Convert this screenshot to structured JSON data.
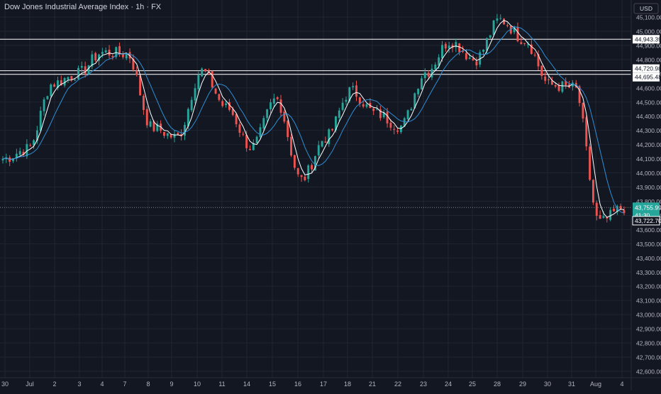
{
  "header": {
    "title": "Dow Jones Industrial Average Index · 1h · FX"
  },
  "currency_badge": "USD",
  "colors": {
    "bg": "#131722",
    "grid": "#1f2430",
    "up": "#26a69a",
    "down": "#ef5350",
    "ma_fast": "#ffffff",
    "ma_slow": "#2e8fd6",
    "level": "#ffffff",
    "price_badge": "#26a69a"
  },
  "chart_data": {
    "type": "candlestick",
    "title": "Dow Jones Industrial Average Index · 1h · FX",
    "ylim": [
      42550,
      45200
    ],
    "y_ticks": [
      "45,100.00",
      "45,000.00",
      "44,900.00",
      "44,800.00",
      "44,700.00",
      "44,600.00",
      "44,500.00",
      "44,400.00",
      "44,300.00",
      "44,200.00",
      "44,100.00",
      "44,000.00",
      "43,900.00",
      "43,800.00",
      "43,700.00",
      "43,600.00",
      "43,500.00",
      "43,400.00",
      "43,300.00",
      "43,200.00",
      "43,100.00",
      "43,000.00",
      "42,900.00",
      "42,800.00",
      "42,700.00",
      "42,600.00"
    ],
    "x_ticks": [
      "30",
      "Jul",
      "2",
      "3",
      "4",
      "7",
      "8",
      "9",
      "10",
      "11",
      "14",
      "15",
      "16",
      "17",
      "18",
      "21",
      "22",
      "23",
      "24",
      "25",
      "28",
      "29",
      "30",
      "31",
      "Aug",
      "4"
    ],
    "levels": [
      {
        "label": "44,943.39",
        "value": 44943.39
      },
      {
        "label": "44,720.98",
        "value": 44720.98
      },
      {
        "label": "44,695.48",
        "value": 44695.48
      }
    ],
    "last_price": {
      "label": "43,755.99",
      "countdown": "41:30"
    },
    "secondary_price": {
      "label": "43,722.70"
    },
    "key_prices": [
      {
        "x": "30",
        "close": 44100
      },
      {
        "x": "Jul",
        "close": 44170
      },
      {
        "x": "2",
        "close": 44630
      },
      {
        "x": "3",
        "close": 44700
      },
      {
        "x": "4",
        "close": 44850
      },
      {
        "x": "7",
        "close": 44840
      },
      {
        "x": "8",
        "close": 44320
      },
      {
        "x": "9",
        "close": 44250
      },
      {
        "x": "10",
        "close": 44720
      },
      {
        "x": "11",
        "close": 44460
      },
      {
        "x": "14",
        "close": 44180
      },
      {
        "x": "15",
        "close": 44520
      },
      {
        "x": "16",
        "close": 43950
      },
      {
        "x": "17",
        "close": 44250
      },
      {
        "x": "18",
        "close": 44580
      },
      {
        "x": "21",
        "close": 44420
      },
      {
        "x": "22",
        "close": 44330
      },
      {
        "x": "23",
        "close": 44710
      },
      {
        "x": "24",
        "close": 44930
      },
      {
        "x": "25",
        "close": 44800
      },
      {
        "x": "28",
        "close": 45080
      },
      {
        "x": "29",
        "close": 44940
      },
      {
        "x": "30",
        "close": 44620
      },
      {
        "x": "31",
        "close": 44600
      },
      {
        "x": "Aug",
        "close": 43650
      },
      {
        "x": "4",
        "close": 43756
      }
    ]
  }
}
